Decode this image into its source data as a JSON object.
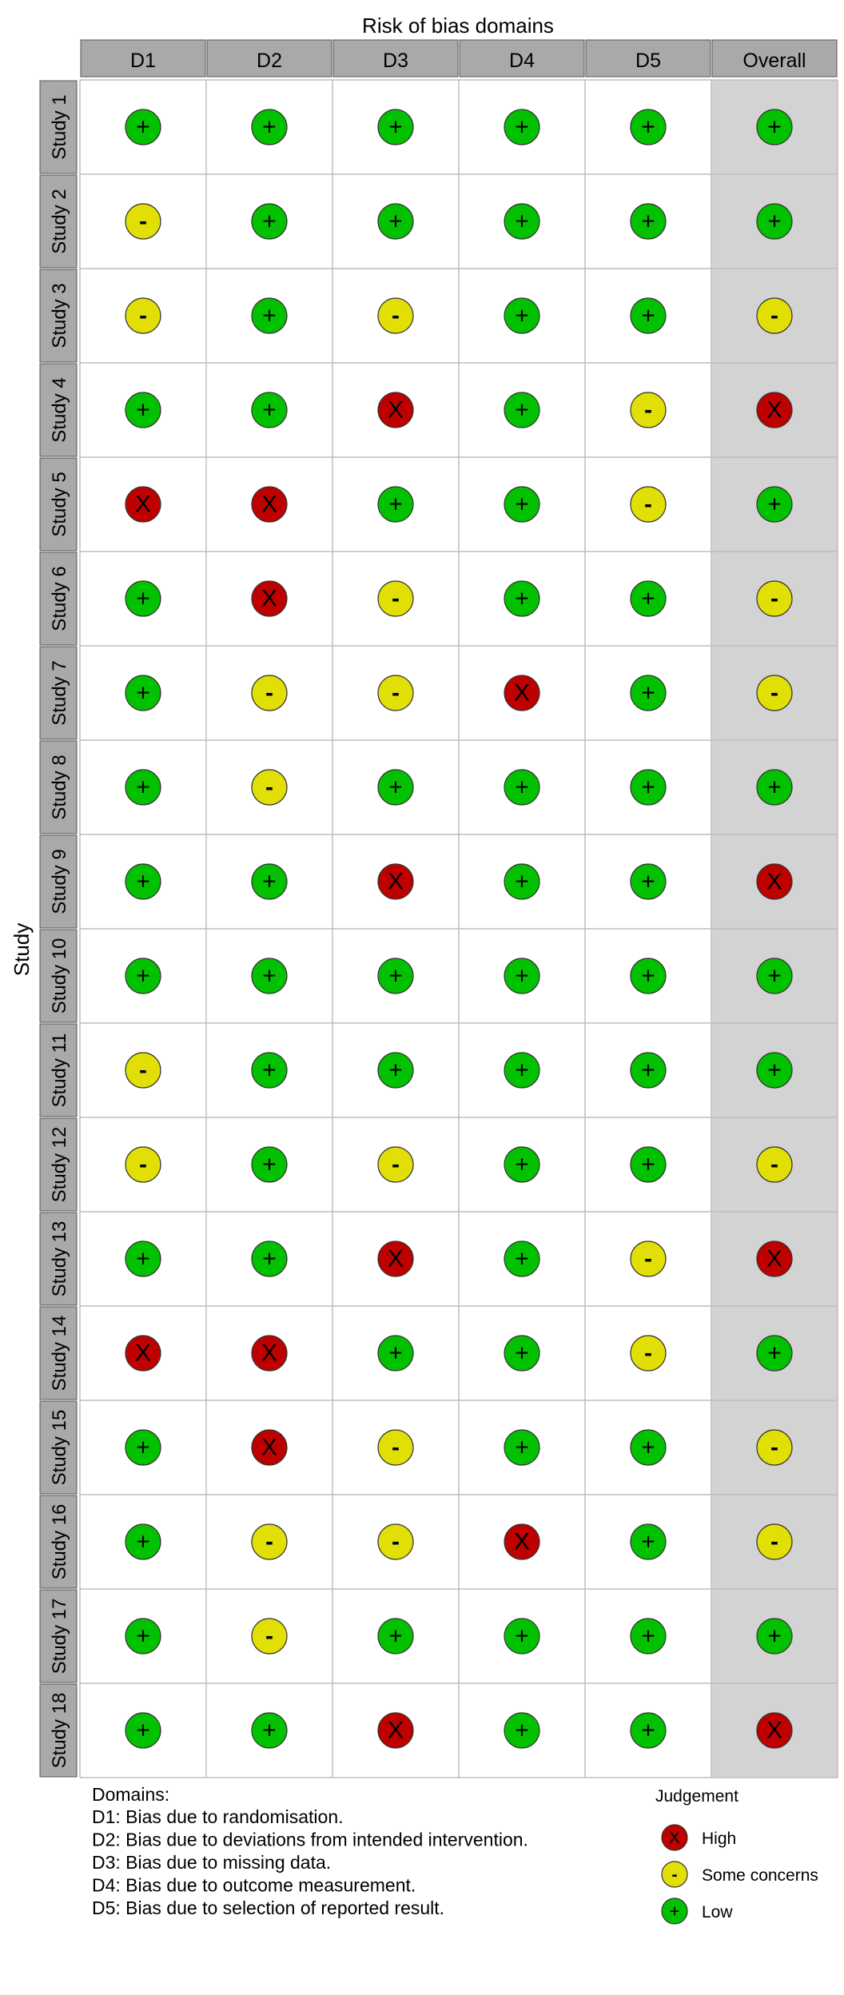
{
  "chart_data": {
    "type": "table",
    "title": "Risk of bias domains",
    "ylabel": "Study",
    "columns": [
      "D1",
      "D2",
      "D3",
      "D4",
      "D5",
      "Overall"
    ],
    "studies": [
      "Study 1",
      "Study 2",
      "Study 3",
      "Study 4",
      "Study 5",
      "Study 6",
      "Study 7",
      "Study 8",
      "Study 9",
      "Study 10",
      "Study 11",
      "Study 12",
      "Study 13",
      "Study 14",
      "Study 15",
      "Study 16",
      "Study 17",
      "Study 18"
    ],
    "judgements": [
      [
        "low",
        "low",
        "low",
        "low",
        "low",
        "low"
      ],
      [
        "some",
        "low",
        "low",
        "low",
        "low",
        "low"
      ],
      [
        "some",
        "low",
        "some",
        "low",
        "low",
        "some"
      ],
      [
        "low",
        "low",
        "high",
        "low",
        "some",
        "high"
      ],
      [
        "high",
        "high",
        "low",
        "low",
        "some",
        "low"
      ],
      [
        "low",
        "high",
        "some",
        "low",
        "low",
        "some"
      ],
      [
        "low",
        "some",
        "some",
        "high",
        "low",
        "some"
      ],
      [
        "low",
        "some",
        "low",
        "low",
        "low",
        "low"
      ],
      [
        "low",
        "low",
        "high",
        "low",
        "low",
        "high"
      ],
      [
        "low",
        "low",
        "low",
        "low",
        "low",
        "low"
      ],
      [
        "some",
        "low",
        "low",
        "low",
        "low",
        "low"
      ],
      [
        "some",
        "low",
        "some",
        "low",
        "low",
        "some"
      ],
      [
        "low",
        "low",
        "high",
        "low",
        "some",
        "high"
      ],
      [
        "high",
        "high",
        "low",
        "low",
        "some",
        "low"
      ],
      [
        "low",
        "high",
        "some",
        "low",
        "low",
        "some"
      ],
      [
        "low",
        "some",
        "some",
        "high",
        "low",
        "some"
      ],
      [
        "low",
        "some",
        "low",
        "low",
        "low",
        "low"
      ],
      [
        "low",
        "low",
        "high",
        "low",
        "low",
        "high"
      ]
    ],
    "symbols": {
      "low": "+",
      "some": "-",
      "high": "X"
    },
    "colors": {
      "low": "#02c100",
      "some": "#e2df07",
      "high": "#bf0000",
      "header": "#a9a9a9",
      "overall_bg": "#d3d3d3"
    },
    "domains_title": "Domains:",
    "domains": [
      "D1: Bias due to randomisation.",
      "D2: Bias due to deviations from intended intervention.",
      "D3: Bias due to missing data.",
      "D4: Bias due to outcome measurement.",
      "D5: Bias due to selection of reported result."
    ],
    "legend_title": "Judgement",
    "legend": [
      {
        "key": "high",
        "label": "High"
      },
      {
        "key": "some",
        "label": "Some concerns"
      },
      {
        "key": "low",
        "label": "Low"
      }
    ]
  }
}
